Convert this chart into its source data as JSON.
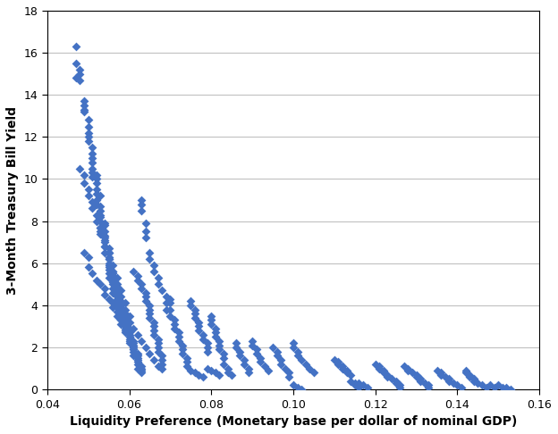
{
  "title": "",
  "xlabel": "Liquidity Preference (Monetary base per dollar of nominal GDP)",
  "ylabel": "3-Month Treasury Bill Yield",
  "xlim": [
    0.04,
    0.16
  ],
  "ylim": [
    0,
    18
  ],
  "xticks": [
    0.04,
    0.06,
    0.08,
    0.1,
    0.12,
    0.14,
    0.16
  ],
  "yticks": [
    0,
    2,
    4,
    6,
    8,
    10,
    12,
    14,
    16,
    18
  ],
  "marker_color": "#4472C4",
  "marker": "D",
  "marker_size": 5,
  "background_color": "#ffffff",
  "grid_color": "#c0c0c0",
  "scatter_data": [
    [
      0.047,
      16.3
    ],
    [
      0.047,
      15.5
    ],
    [
      0.048,
      15.2
    ],
    [
      0.048,
      15.0
    ],
    [
      0.047,
      14.8
    ],
    [
      0.048,
      14.7
    ],
    [
      0.049,
      13.7
    ],
    [
      0.049,
      13.5
    ],
    [
      0.049,
      13.3
    ],
    [
      0.049,
      13.2
    ],
    [
      0.05,
      12.8
    ],
    [
      0.05,
      12.5
    ],
    [
      0.05,
      12.2
    ],
    [
      0.05,
      12.0
    ],
    [
      0.05,
      11.8
    ],
    [
      0.051,
      11.5
    ],
    [
      0.051,
      11.2
    ],
    [
      0.051,
      11.0
    ],
    [
      0.051,
      10.8
    ],
    [
      0.051,
      10.5
    ],
    [
      0.051,
      10.3
    ],
    [
      0.051,
      10.1
    ],
    [
      0.052,
      10.2
    ],
    [
      0.052,
      10.0
    ],
    [
      0.052,
      9.8
    ],
    [
      0.052,
      9.5
    ],
    [
      0.052,
      9.3
    ],
    [
      0.052,
      9.0
    ],
    [
      0.052,
      8.8
    ],
    [
      0.053,
      9.2
    ],
    [
      0.053,
      8.7
    ],
    [
      0.053,
      8.5
    ],
    [
      0.053,
      8.3
    ],
    [
      0.053,
      8.2
    ],
    [
      0.053,
      8.0
    ],
    [
      0.053,
      7.7
    ],
    [
      0.053,
      7.5
    ],
    [
      0.054,
      7.9
    ],
    [
      0.054,
      7.8
    ],
    [
      0.054,
      7.5
    ],
    [
      0.054,
      7.3
    ],
    [
      0.054,
      7.2
    ],
    [
      0.054,
      7.0
    ],
    [
      0.054,
      6.8
    ],
    [
      0.054,
      6.5
    ],
    [
      0.055,
      6.7
    ],
    [
      0.055,
      6.5
    ],
    [
      0.055,
      6.3
    ],
    [
      0.055,
      6.2
    ],
    [
      0.055,
      6.0
    ],
    [
      0.055,
      5.9
    ],
    [
      0.055,
      5.8
    ],
    [
      0.055,
      5.7
    ],
    [
      0.055,
      5.5
    ],
    [
      0.055,
      5.3
    ],
    [
      0.056,
      5.6
    ],
    [
      0.056,
      5.5
    ],
    [
      0.056,
      5.4
    ],
    [
      0.056,
      5.3
    ],
    [
      0.056,
      5.2
    ],
    [
      0.056,
      5.1
    ],
    [
      0.056,
      5.0
    ],
    [
      0.056,
      4.8
    ],
    [
      0.056,
      4.6
    ],
    [
      0.057,
      4.9
    ],
    [
      0.057,
      4.8
    ],
    [
      0.057,
      4.7
    ],
    [
      0.057,
      4.6
    ],
    [
      0.057,
      4.5
    ],
    [
      0.057,
      4.4
    ],
    [
      0.057,
      4.3
    ],
    [
      0.057,
      4.1
    ],
    [
      0.057,
      3.9
    ],
    [
      0.058,
      4.2
    ],
    [
      0.058,
      4.1
    ],
    [
      0.058,
      4.0
    ],
    [
      0.058,
      3.9
    ],
    [
      0.058,
      3.8
    ],
    [
      0.058,
      3.7
    ],
    [
      0.058,
      3.5
    ],
    [
      0.058,
      3.3
    ],
    [
      0.059,
      3.6
    ],
    [
      0.059,
      3.5
    ],
    [
      0.059,
      3.4
    ],
    [
      0.059,
      3.3
    ],
    [
      0.059,
      3.2
    ],
    [
      0.059,
      3.1
    ],
    [
      0.059,
      3.0
    ],
    [
      0.059,
      2.8
    ],
    [
      0.06,
      2.9
    ],
    [
      0.06,
      2.8
    ],
    [
      0.06,
      2.7
    ],
    [
      0.06,
      2.6
    ],
    [
      0.06,
      2.5
    ],
    [
      0.06,
      2.4
    ],
    [
      0.06,
      2.2
    ],
    [
      0.061,
      2.3
    ],
    [
      0.061,
      2.2
    ],
    [
      0.061,
      2.1
    ],
    [
      0.061,
      2.0
    ],
    [
      0.061,
      1.9
    ],
    [
      0.061,
      1.8
    ],
    [
      0.061,
      1.6
    ],
    [
      0.062,
      1.7
    ],
    [
      0.062,
      1.6
    ],
    [
      0.062,
      1.5
    ],
    [
      0.062,
      1.4
    ],
    [
      0.062,
      1.3
    ],
    [
      0.062,
      1.2
    ],
    [
      0.062,
      1.0
    ],
    [
      0.063,
      1.1
    ],
    [
      0.063,
      1.0
    ],
    [
      0.063,
      0.9
    ],
    [
      0.063,
      0.8
    ],
    [
      0.048,
      10.5
    ],
    [
      0.049,
      10.2
    ],
    [
      0.049,
      9.8
    ],
    [
      0.05,
      9.5
    ],
    [
      0.05,
      9.2
    ],
    [
      0.051,
      8.9
    ],
    [
      0.051,
      8.6
    ],
    [
      0.052,
      8.3
    ],
    [
      0.052,
      8.0
    ],
    [
      0.053,
      7.7
    ],
    [
      0.053,
      7.4
    ],
    [
      0.054,
      7.1
    ],
    [
      0.054,
      6.8
    ],
    [
      0.055,
      6.5
    ],
    [
      0.055,
      6.2
    ],
    [
      0.056,
      5.9
    ],
    [
      0.056,
      5.6
    ],
    [
      0.057,
      5.3
    ],
    [
      0.057,
      5.0
    ],
    [
      0.058,
      4.7
    ],
    [
      0.058,
      4.4
    ],
    [
      0.059,
      4.1
    ],
    [
      0.059,
      3.8
    ],
    [
      0.06,
      3.5
    ],
    [
      0.06,
      3.2
    ],
    [
      0.061,
      2.9
    ],
    [
      0.062,
      2.6
    ],
    [
      0.063,
      2.3
    ],
    [
      0.064,
      2.0
    ],
    [
      0.065,
      1.7
    ],
    [
      0.066,
      1.4
    ],
    [
      0.067,
      1.1
    ],
    [
      0.049,
      6.5
    ],
    [
      0.05,
      6.3
    ],
    [
      0.05,
      5.8
    ],
    [
      0.051,
      5.5
    ],
    [
      0.052,
      5.2
    ],
    [
      0.053,
      5.0
    ],
    [
      0.054,
      4.8
    ],
    [
      0.054,
      4.5
    ],
    [
      0.055,
      4.3
    ],
    [
      0.056,
      4.1
    ],
    [
      0.056,
      3.9
    ],
    [
      0.057,
      3.7
    ],
    [
      0.057,
      3.5
    ],
    [
      0.058,
      3.3
    ],
    [
      0.058,
      3.1
    ],
    [
      0.059,
      2.9
    ],
    [
      0.059,
      2.7
    ],
    [
      0.06,
      2.5
    ],
    [
      0.06,
      2.3
    ],
    [
      0.061,
      2.1
    ],
    [
      0.061,
      1.9
    ],
    [
      0.061,
      5.6
    ],
    [
      0.062,
      5.4
    ],
    [
      0.062,
      5.2
    ],
    [
      0.063,
      5.0
    ],
    [
      0.063,
      4.8
    ],
    [
      0.064,
      4.6
    ],
    [
      0.064,
      4.4
    ],
    [
      0.064,
      4.2
    ],
    [
      0.065,
      4.0
    ],
    [
      0.065,
      3.8
    ],
    [
      0.065,
      3.6
    ],
    [
      0.065,
      3.4
    ],
    [
      0.066,
      3.2
    ],
    [
      0.066,
      3.0
    ],
    [
      0.066,
      2.8
    ],
    [
      0.066,
      2.6
    ],
    [
      0.067,
      2.4
    ],
    [
      0.067,
      2.2
    ],
    [
      0.067,
      2.0
    ],
    [
      0.067,
      1.8
    ],
    [
      0.068,
      1.6
    ],
    [
      0.068,
      1.4
    ],
    [
      0.068,
      1.2
    ],
    [
      0.068,
      1.0
    ],
    [
      0.063,
      9.0
    ],
    [
      0.063,
      8.8
    ],
    [
      0.063,
      8.5
    ],
    [
      0.064,
      7.9
    ],
    [
      0.064,
      7.5
    ],
    [
      0.064,
      7.2
    ],
    [
      0.065,
      6.5
    ],
    [
      0.065,
      6.2
    ],
    [
      0.066,
      5.9
    ],
    [
      0.066,
      5.6
    ],
    [
      0.067,
      5.3
    ],
    [
      0.067,
      5.0
    ],
    [
      0.068,
      4.7
    ],
    [
      0.069,
      4.4
    ],
    [
      0.069,
      4.1
    ],
    [
      0.069,
      3.8
    ],
    [
      0.07,
      4.3
    ],
    [
      0.07,
      4.1
    ],
    [
      0.07,
      3.8
    ],
    [
      0.07,
      3.5
    ],
    [
      0.071,
      3.3
    ],
    [
      0.071,
      3.1
    ],
    [
      0.071,
      2.9
    ],
    [
      0.072,
      2.7
    ],
    [
      0.072,
      2.5
    ],
    [
      0.072,
      2.3
    ],
    [
      0.073,
      2.1
    ],
    [
      0.073,
      1.9
    ],
    [
      0.073,
      1.7
    ],
    [
      0.074,
      1.5
    ],
    [
      0.074,
      1.3
    ],
    [
      0.074,
      1.1
    ],
    [
      0.075,
      4.2
    ],
    [
      0.075,
      4.0
    ],
    [
      0.076,
      3.8
    ],
    [
      0.076,
      3.6
    ],
    [
      0.076,
      3.4
    ],
    [
      0.077,
      3.2
    ],
    [
      0.077,
      3.0
    ],
    [
      0.077,
      2.8
    ],
    [
      0.078,
      2.6
    ],
    [
      0.078,
      2.4
    ],
    [
      0.079,
      2.2
    ],
    [
      0.079,
      2.0
    ],
    [
      0.079,
      1.8
    ],
    [
      0.08,
      3.5
    ],
    [
      0.08,
      3.3
    ],
    [
      0.08,
      3.1
    ],
    [
      0.081,
      2.9
    ],
    [
      0.081,
      2.7
    ],
    [
      0.081,
      2.5
    ],
    [
      0.082,
      2.3
    ],
    [
      0.082,
      2.1
    ],
    [
      0.082,
      1.9
    ],
    [
      0.083,
      1.7
    ],
    [
      0.083,
      1.5
    ],
    [
      0.083,
      1.2
    ],
    [
      0.084,
      1.0
    ],
    [
      0.084,
      0.8
    ],
    [
      0.085,
      0.7
    ],
    [
      0.075,
      0.9
    ],
    [
      0.076,
      0.8
    ],
    [
      0.077,
      0.7
    ],
    [
      0.078,
      0.6
    ],
    [
      0.079,
      1.0
    ],
    [
      0.08,
      0.9
    ],
    [
      0.081,
      0.8
    ],
    [
      0.082,
      0.7
    ],
    [
      0.086,
      2.2
    ],
    [
      0.086,
      2.0
    ],
    [
      0.087,
      1.8
    ],
    [
      0.087,
      1.6
    ],
    [
      0.088,
      1.4
    ],
    [
      0.088,
      1.2
    ],
    [
      0.089,
      1.0
    ],
    [
      0.089,
      0.8
    ],
    [
      0.09,
      2.3
    ],
    [
      0.09,
      2.1
    ],
    [
      0.091,
      1.9
    ],
    [
      0.091,
      1.7
    ],
    [
      0.092,
      1.5
    ],
    [
      0.092,
      1.3
    ],
    [
      0.093,
      1.1
    ],
    [
      0.094,
      0.9
    ],
    [
      0.095,
      2.0
    ],
    [
      0.096,
      1.8
    ],
    [
      0.096,
      1.6
    ],
    [
      0.097,
      1.4
    ],
    [
      0.097,
      1.2
    ],
    [
      0.098,
      1.0
    ],
    [
      0.099,
      0.8
    ],
    [
      0.099,
      0.6
    ],
    [
      0.1,
      2.2
    ],
    [
      0.1,
      2.0
    ],
    [
      0.101,
      1.8
    ],
    [
      0.101,
      1.6
    ],
    [
      0.102,
      1.4
    ],
    [
      0.103,
      1.2
    ],
    [
      0.104,
      1.0
    ],
    [
      0.105,
      0.8
    ],
    [
      0.1,
      0.2
    ],
    [
      0.101,
      0.1
    ],
    [
      0.102,
      0.0
    ],
    [
      0.11,
      1.4
    ],
    [
      0.111,
      1.3
    ],
    [
      0.111,
      1.2
    ],
    [
      0.112,
      1.1
    ],
    [
      0.112,
      1.0
    ],
    [
      0.113,
      0.9
    ],
    [
      0.113,
      0.8
    ],
    [
      0.114,
      0.7
    ],
    [
      0.114,
      0.4
    ],
    [
      0.115,
      0.3
    ],
    [
      0.115,
      0.2
    ],
    [
      0.116,
      0.1
    ],
    [
      0.116,
      0.3
    ],
    [
      0.117,
      0.2
    ],
    [
      0.118,
      0.1
    ],
    [
      0.12,
      1.2
    ],
    [
      0.121,
      1.1
    ],
    [
      0.121,
      1.0
    ],
    [
      0.122,
      0.9
    ],
    [
      0.122,
      0.8
    ],
    [
      0.123,
      0.7
    ],
    [
      0.123,
      0.6
    ],
    [
      0.124,
      0.5
    ],
    [
      0.125,
      0.4
    ],
    [
      0.125,
      0.3
    ],
    [
      0.126,
      0.2
    ],
    [
      0.126,
      0.1
    ],
    [
      0.127,
      1.1
    ],
    [
      0.128,
      1.0
    ],
    [
      0.128,
      0.9
    ],
    [
      0.129,
      0.8
    ],
    [
      0.13,
      0.7
    ],
    [
      0.13,
      0.6
    ],
    [
      0.131,
      0.5
    ],
    [
      0.131,
      0.4
    ],
    [
      0.132,
      0.3
    ],
    [
      0.133,
      0.2
    ],
    [
      0.133,
      0.1
    ],
    [
      0.135,
      0.9
    ],
    [
      0.136,
      0.8
    ],
    [
      0.136,
      0.7
    ],
    [
      0.137,
      0.6
    ],
    [
      0.138,
      0.5
    ],
    [
      0.138,
      0.4
    ],
    [
      0.139,
      0.3
    ],
    [
      0.14,
      0.2
    ],
    [
      0.141,
      0.1
    ],
    [
      0.142,
      0.9
    ],
    [
      0.142,
      0.8
    ],
    [
      0.143,
      0.7
    ],
    [
      0.143,
      0.6
    ],
    [
      0.144,
      0.5
    ],
    [
      0.144,
      0.4
    ],
    [
      0.145,
      0.3
    ],
    [
      0.146,
      0.2
    ],
    [
      0.147,
      0.1
    ],
    [
      0.148,
      0.2
    ],
    [
      0.149,
      0.1
    ],
    [
      0.15,
      0.2
    ],
    [
      0.151,
      0.1
    ],
    [
      0.152,
      0.1
    ],
    [
      0.153,
      0.0
    ]
  ]
}
